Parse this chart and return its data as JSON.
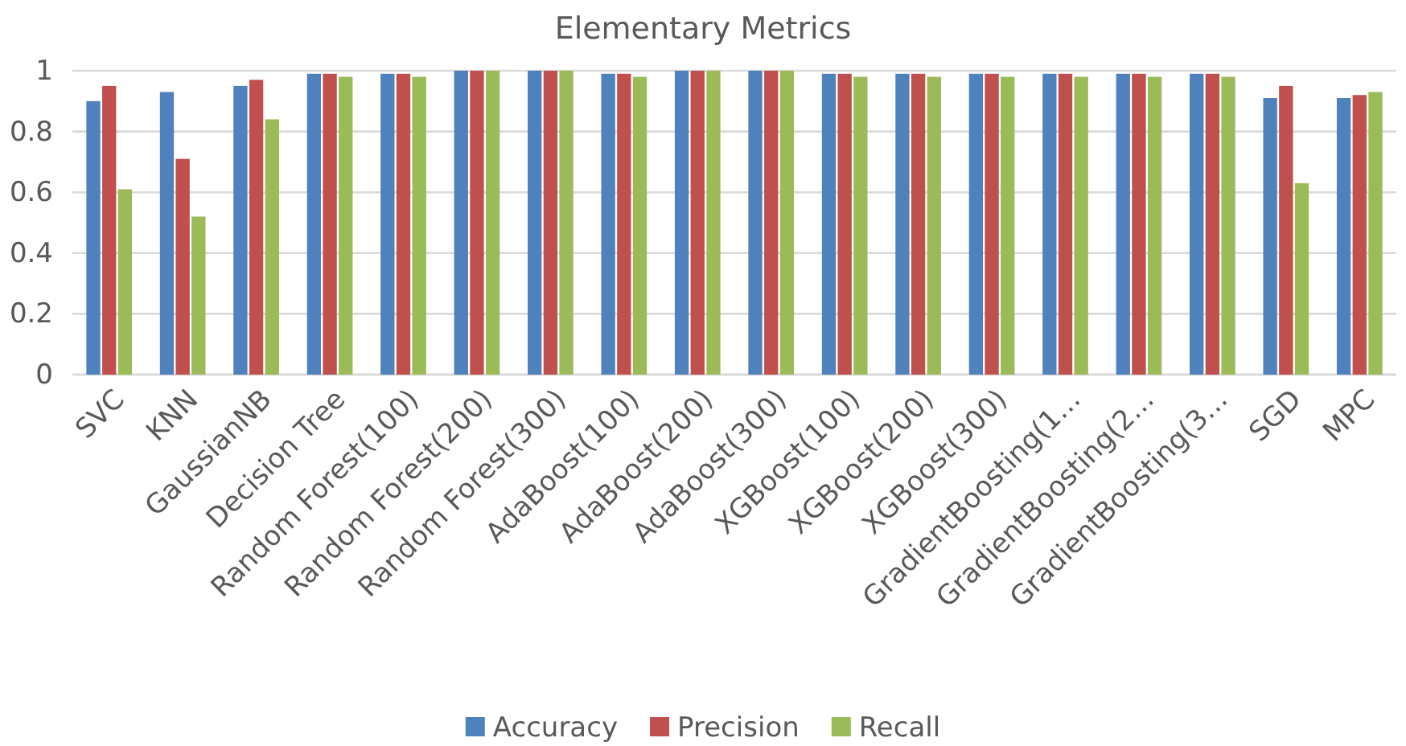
{
  "chart_data": {
    "type": "bar",
    "title": "Elementary Metrics",
    "categories": [
      "SVC",
      "KNN",
      "GaussianNB",
      "Decision Tree",
      "Random Forest(100)",
      "Random Forest(200)",
      "Random Forest(300)",
      "AdaBoost(100)",
      "AdaBoost(200)",
      "AdaBoost(300)",
      "XGBoost(100)",
      "XGBoost(200)",
      "XGBoost(300)",
      "GradientBoosting(1…",
      "GradientBoosting(2…",
      "GradientBoosting(3…",
      "SGD",
      "MPC"
    ],
    "series": [
      {
        "name": "Accuracy",
        "color": "#4f81bd",
        "values": [
          0.9,
          0.93,
          0.95,
          0.99,
          0.99,
          1,
          1,
          0.99,
          1,
          1,
          0.99,
          0.99,
          0.99,
          0.99,
          0.99,
          0.99,
          0.91,
          0.91
        ]
      },
      {
        "name": "Precision",
        "color": "#c0504d",
        "values": [
          0.95,
          0.71,
          0.97,
          0.99,
          0.99,
          1,
          1,
          0.99,
          1,
          1,
          0.99,
          0.99,
          0.99,
          0.99,
          0.99,
          0.99,
          0.95,
          0.92
        ]
      },
      {
        "name": "Recall",
        "color": "#9bbb59",
        "values": [
          0.61,
          0.52,
          0.84,
          0.98,
          0.98,
          1,
          1,
          0.98,
          1,
          1,
          0.98,
          0.98,
          0.98,
          0.98,
          0.98,
          0.98,
          0.63,
          0.93
        ]
      }
    ],
    "ylim": [
      0,
      1
    ],
    "yticks": [
      0,
      0.2,
      0.4,
      0.6,
      0.8,
      1
    ],
    "grid": "y",
    "legend": "bottom"
  }
}
